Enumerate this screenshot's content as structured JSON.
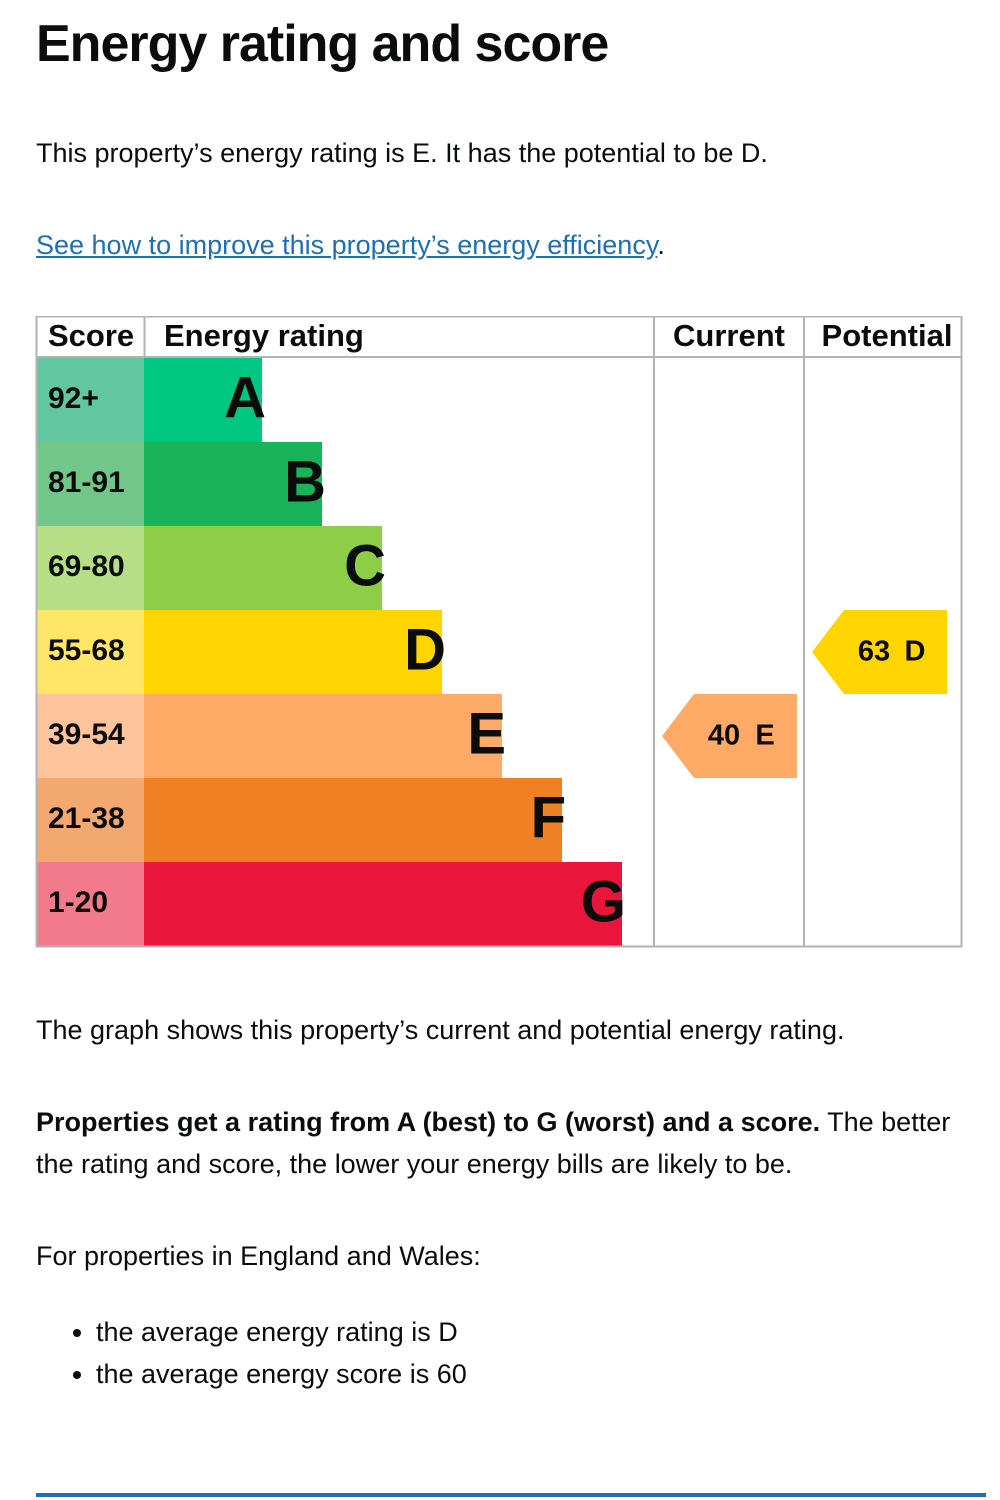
{
  "title": "Energy rating and score",
  "intro": "This property’s energy rating is E. It has the potential to be D.",
  "link": {
    "text": "See how to improve this property’s energy efficiency",
    "suffix": "."
  },
  "table": {
    "header": [
      "Score",
      "Energy rating",
      "Current",
      "Potential"
    ],
    "rows": [
      {
        "score": "92+",
        "rating": "A"
      },
      {
        "score": "81-91",
        "rating": "B"
      },
      {
        "score": "69-80",
        "rating": "C"
      },
      {
        "score": "55-68",
        "rating": "D"
      },
      {
        "score": "39-54",
        "rating": "E"
      },
      {
        "score": "21-38",
        "rating": "F"
      },
      {
        "score": "1-20",
        "rating": "G"
      }
    ],
    "current": {
      "score": "40",
      "rating": "E"
    },
    "potential": {
      "score": "63",
      "rating": "D"
    }
  },
  "graph_note": "The graph shows this property’s current and potential energy rating.",
  "explain": {
    "bold": "Properties get a rating from A (best) to G (worst) and a score.",
    "rest": " The better the rating and score, the lower your energy bills are likely to be."
  },
  "region": "For properties in England and Wales:",
  "bullets": [
    "the average energy rating is D",
    "the average energy score is 60"
  ]
}
